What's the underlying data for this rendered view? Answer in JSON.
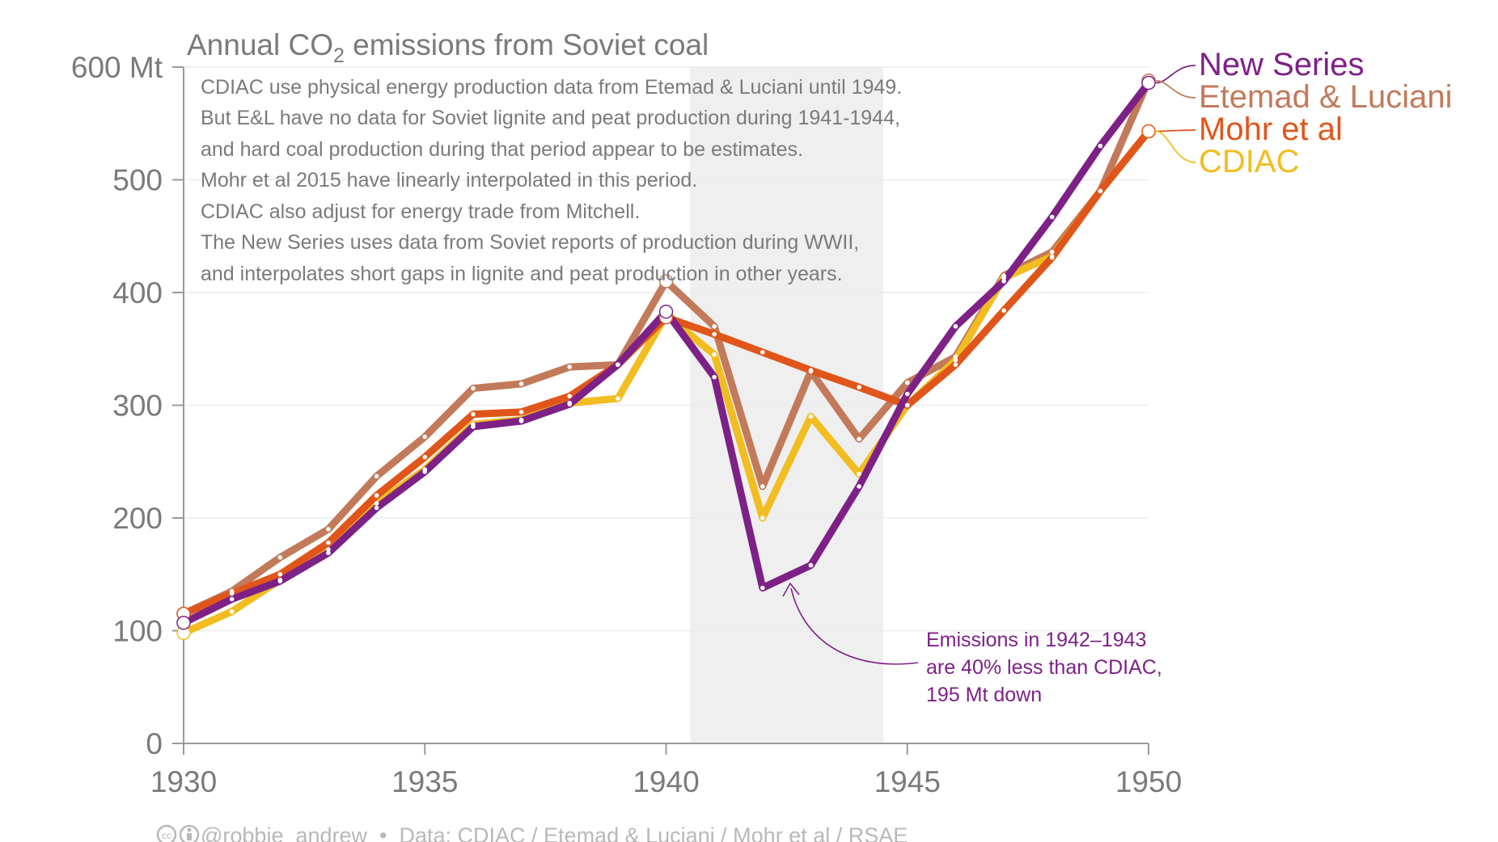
{
  "chart_data": {
    "type": "line",
    "title": "Annual CO₂ emissions from Soviet coal",
    "title_parts": {
      "prefix": "Annual CO",
      "subscript": "2",
      "suffix": " emissions from Soviet coal"
    },
    "x": [
      1930,
      1931,
      1932,
      1933,
      1934,
      1935,
      1936,
      1937,
      1938,
      1939,
      1940,
      1941,
      1942,
      1943,
      1944,
      1945,
      1946,
      1947,
      1948,
      1949,
      1950
    ],
    "xlim": [
      1930,
      1950
    ],
    "xticks": [
      "1930",
      "1935",
      "1940",
      "1945",
      "1950"
    ],
    "ylim": [
      0,
      600
    ],
    "yticks": [
      "0",
      "100",
      "200",
      "300",
      "400",
      "500",
      "600 Mt"
    ],
    "grid": "horizontal",
    "shaded_period": [
      1940.5,
      1944.5
    ],
    "series": [
      {
        "name": "Etemad & Luciani",
        "color": "#c27a5a",
        "values": [
          115,
          135,
          165,
          190,
          237,
          272,
          315,
          319,
          334,
          336,
          410,
          370,
          228,
          330,
          270,
          320,
          343,
          415,
          436,
          490,
          588
        ]
      },
      {
        "name": "CDIAC",
        "color": "#f1bd20",
        "values": [
          98,
          117,
          145,
          172,
          213,
          243,
          283,
          287,
          302,
          306,
          380,
          345,
          200,
          290,
          239,
          300,
          340,
          413,
          432,
          490,
          543
        ]
      },
      {
        "name": "Mohr et al",
        "color": "#e0561a",
        "values": [
          115,
          133,
          150,
          178,
          220,
          254,
          292,
          294,
          308,
          336,
          378,
          363,
          347,
          331,
          316,
          300,
          336,
          384,
          431,
          490,
          543
        ]
      },
      {
        "name": "New Series",
        "color": "#7d2187",
        "values": [
          107,
          128,
          144,
          169,
          209,
          241,
          281,
          286,
          301,
          336,
          383,
          325,
          138,
          158,
          228,
          310,
          370,
          410,
          467,
          530,
          586
        ]
      }
    ],
    "legend_order": [
      "New Series",
      "Etemad & Luciani",
      "Mohr et al",
      "CDIAC"
    ],
    "legend_placement": "right, at line ends",
    "note_lines": [
      "CDIAC use physical energy production data from Etemad & Luciani until 1949.",
      "But E&L have no data for Soviet lignite and peat production during 1941-1944,",
      "and hard coal production during that period appear to be estimates.",
      "Mohr et al 2015 have linearly interpolated in this period.",
      "CDIAC also adjust for energy trade from Mitchell.",
      "The New Series uses data from Soviet reports of production during WWII,",
      "and interpolates short gaps in lignite and peat production in other years."
    ],
    "annotation": {
      "lines": [
        "Emissions in 1942–1943",
        "are 40% less than CDIAC,",
        "195 Mt down"
      ],
      "color": "#7d2187"
    },
    "footer": "@robbie_andrew  •  Data: CDIAC / Etemad & Luciani / Mohr et al / RSAE"
  },
  "colors": {
    "axis": "#9a9a9a",
    "grid": "#ececec",
    "shade": "#efefef",
    "text": "#7a7a7a",
    "footer": "#b8b8b8"
  },
  "icons": [
    "creative-commons-icon",
    "attribution-icon"
  ]
}
